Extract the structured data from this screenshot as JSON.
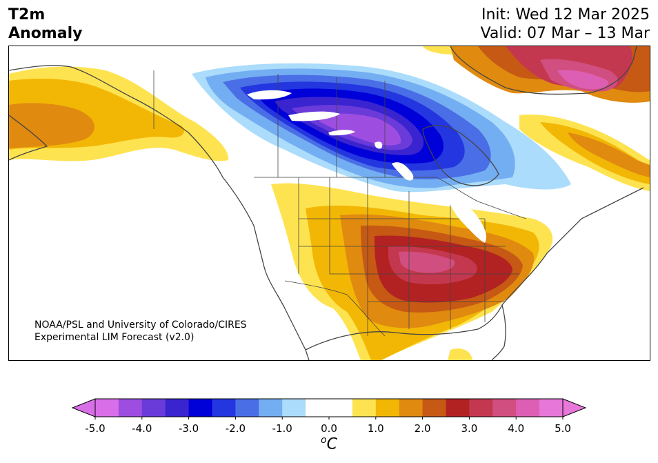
{
  "header": {
    "title_line1": "T2m",
    "title_line2": "Anomaly",
    "init_text": "Init: Wed 12 Mar 2025",
    "valid_text": "Valid: 07 Mar – 13 Mar"
  },
  "map": {
    "credit_line1": "NOAA/PSL and University of Colorado/CIRES",
    "credit_line2": "Experimental LIM Forecast (v2.0)",
    "feature_colors": {
      "coastline": "#444444",
      "borders": "#444444",
      "lakes": "#ffffff"
    }
  },
  "colorbar": {
    "unit_symbol": "o",
    "unit_letter": "C",
    "min": -5.0,
    "max": 5.0,
    "step": 0.5,
    "tick_labels": [
      "-5.0",
      "-4.0",
      "-3.0",
      "-2.0",
      "-1.0",
      "0.0",
      "1.0",
      "2.0",
      "3.0",
      "4.0",
      "5.0"
    ],
    "tick_values": [
      -5,
      -4,
      -3,
      -2,
      -1,
      0,
      1,
      2,
      3,
      4,
      5
    ],
    "colors": [
      "#d96fe8",
      "#9d4ee0",
      "#6a3bd9",
      "#3a24cf",
      "#0000d8",
      "#2336e0",
      "#4a6ee6",
      "#74aef2",
      "#abdcfb",
      "#ffffff",
      "#ffffff",
      "#fee350",
      "#f2b705",
      "#e08a10",
      "#c65914",
      "#b22222",
      "#c4384f",
      "#d14e80",
      "#dd5fb3",
      "#e777d9"
    ],
    "extend_low_color": "#d96fe8",
    "extend_high_color": "#e777d9"
  }
}
